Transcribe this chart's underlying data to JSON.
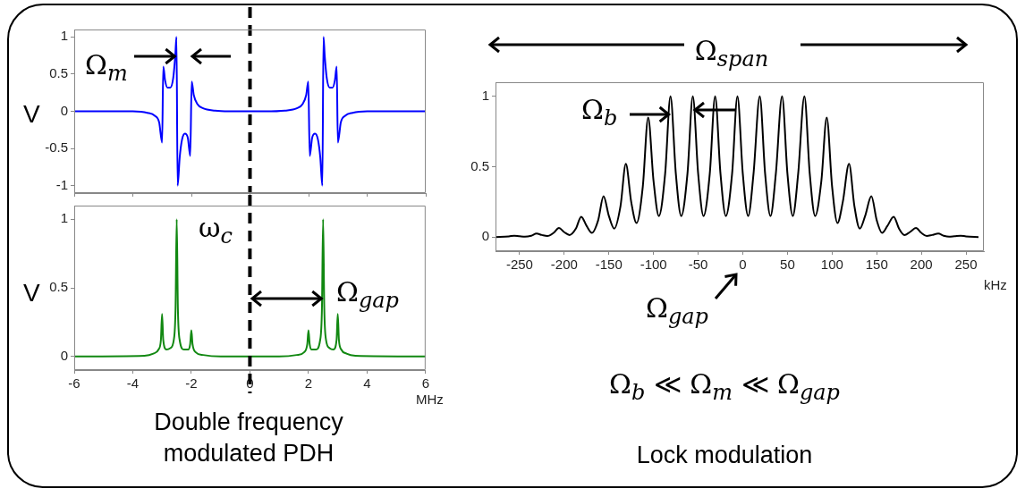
{
  "chart_data": [
    {
      "type": "line",
      "ylabel": "V",
      "annotations": [
        {
          "text": "Ω$_{m}$",
          "x": -2.51,
          "y": 0.74
        }
      ],
      "xlim": [
        -6,
        6
      ],
      "ylim": [
        -1.1,
        1.1
      ],
      "xticks": [
        -6,
        -4,
        -2,
        0,
        2,
        4,
        6
      ],
      "yticks": [
        -1,
        -0.5,
        0,
        0.5,
        1
      ],
      "tick_labels": "y",
      "ref_lines": [
        {
          "axis": "x",
          "value": 0,
          "line_style": "dashed",
          "color": "#000000"
        }
      ],
      "series": [
        {
          "color": "#0000ff",
          "x": [
            -6,
            -4.5,
            -4,
            -3.5,
            -3.25,
            -3.1,
            -3.0,
            -2.96,
            -2.9,
            -2.82,
            -2.72,
            -2.62,
            -2.55,
            -2.51,
            -2.47,
            -2.4,
            -2.32,
            -2.22,
            -2.12,
            -2.04,
            -1.99,
            -1.92,
            -1.8,
            -1.6,
            -1.2,
            -0.5,
            0,
            0.5,
            1.2,
            1.6,
            1.8,
            1.92,
            1.99,
            2.04,
            2.12,
            2.22,
            2.32,
            2.4,
            2.47,
            2.51,
            2.55,
            2.62,
            2.72,
            2.82,
            2.9,
            2.96,
            3.0,
            3.1,
            3.25,
            3.5,
            4,
            4.5,
            6
          ],
          "values": [
            0,
            0,
            0,
            -0.02,
            -0.06,
            -0.15,
            -0.42,
            0.6,
            0.42,
            0.32,
            0.32,
            0.45,
            0.75,
            1,
            -1,
            -0.62,
            -0.38,
            -0.3,
            -0.36,
            -0.6,
            0.4,
            0.22,
            0.1,
            0.04,
            0.01,
            0,
            0,
            0,
            0.01,
            0.04,
            0.1,
            0.22,
            0.4,
            -0.6,
            -0.36,
            -0.3,
            -0.38,
            -0.62,
            -1,
            1,
            0.75,
            0.45,
            0.32,
            0.32,
            0.42,
            0.6,
            -0.42,
            -0.15,
            -0.06,
            -0.02,
            0,
            0,
            0
          ]
        }
      ]
    },
    {
      "type": "line",
      "ylabel": "V",
      "xlabel": "MHz",
      "annotations": [
        "ω$_{c}$",
        {
          "text": "Ω$_{gap}$",
          "x": 2.5,
          "y": 0.42
        },
        "Double frequency modulated PDH"
      ],
      "xlim": [
        -6,
        6
      ],
      "ylim": [
        -0.1,
        1.1
      ],
      "xticks": [
        -6,
        -4,
        -2,
        0,
        2,
        4,
        6
      ],
      "yticks": [
        0,
        0.5,
        1
      ],
      "ref_lines": [
        {
          "axis": "x",
          "value": 0,
          "line_style": "dashed",
          "color": "#000000"
        }
      ],
      "series": [
        {
          "color": "#118811",
          "x": [
            -6,
            -3.6,
            -3.3,
            -3.12,
            -3.04,
            -3.0,
            -2.96,
            -2.85,
            -2.72,
            -2.6,
            -2.54,
            -2.5,
            -2.46,
            -2.4,
            -2.25,
            -2.1,
            -2.04,
            -2.0,
            -1.96,
            -1.85,
            -1.6,
            -1,
            0,
            1,
            1.6,
            1.85,
            1.96,
            2.0,
            2.04,
            2.1,
            2.25,
            2.4,
            2.46,
            2.5,
            2.54,
            2.6,
            2.72,
            2.85,
            2.96,
            3.0,
            3.04,
            3.12,
            3.3,
            3.6,
            6
          ],
          "values": [
            0,
            0.005,
            0.02,
            0.05,
            0.12,
            0.31,
            0.12,
            0.05,
            0.06,
            0.12,
            0.35,
            1,
            0.35,
            0.12,
            0.05,
            0.05,
            0.09,
            0.19,
            0.09,
            0.03,
            0.01,
            0,
            0,
            0,
            0.01,
            0.03,
            0.09,
            0.19,
            0.09,
            0.05,
            0.05,
            0.12,
            0.35,
            1,
            0.35,
            0.12,
            0.06,
            0.05,
            0.12,
            0.31,
            0.12,
            0.05,
            0.02,
            0.005,
            0
          ]
        }
      ]
    },
    {
      "type": "line",
      "xlabel": "kHz",
      "annotations": [
        "Ω$_{span}$",
        {
          "text": "Ω$_{b}$",
          "x": -81,
          "y": 0.87
        },
        "Ω$_{gap}$",
        "Ω$_{b}$ ≪ Ω$_{m}$ ≪ Ω$_{gap}$",
        "Lock modulation"
      ],
      "xlim": [
        -277,
        270
      ],
      "ylim": [
        -0.1,
        1.1
      ],
      "xticks": [
        -250,
        -200,
        -150,
        -100,
        -50,
        0,
        50,
        100,
        150,
        200,
        250
      ],
      "yticks": [
        0,
        0.5,
        1
      ],
      "series": [
        {
          "color": "#000000",
          "x": [
            -277,
            -262,
            -256,
            -250,
            -244,
            -237,
            -231,
            -225,
            -219,
            -212,
            -206,
            -200,
            -194,
            -187,
            -181,
            -175,
            -169,
            -162,
            -156,
            -150,
            -144,
            -137,
            -131,
            -125,
            -119,
            -112,
            -106,
            -100,
            -94,
            -87,
            -81,
            -75,
            -69,
            -62,
            -56,
            -50,
            -44,
            -37,
            -31,
            -25,
            -19,
            -12,
            -6,
            0,
            6,
            12,
            19,
            25,
            31,
            37,
            44,
            50,
            56,
            62,
            69,
            75,
            81,
            88,
            94,
            100,
            106,
            112,
            119,
            125,
            131,
            137,
            144,
            150,
            156,
            162,
            169,
            175,
            181,
            187,
            194,
            200,
            206,
            212,
            219,
            225,
            231,
            237,
            244,
            250,
            264
          ],
          "values": [
            0,
            0.005,
            0.01,
            0.006,
            0.003,
            0.01,
            0.025,
            0.015,
            0.008,
            0.03,
            0.065,
            0.035,
            0.015,
            0.06,
            0.145,
            0.08,
            0.03,
            0.12,
            0.29,
            0.15,
            0.06,
            0.22,
            0.52,
            0.25,
            0.1,
            0.36,
            0.85,
            0.4,
            0.15,
            0.45,
            1,
            0.45,
            0.15,
            0.45,
            1,
            0.45,
            0.15,
            0.45,
            1,
            0.45,
            0.15,
            0.45,
            1,
            0.45,
            0.15,
            0.45,
            1,
            0.45,
            0.15,
            0.45,
            1,
            0.45,
            0.15,
            0.45,
            1,
            0.45,
            0.15,
            0.4,
            0.85,
            0.36,
            0.1,
            0.25,
            0.52,
            0.22,
            0.06,
            0.15,
            0.29,
            0.12,
            0.03,
            0.08,
            0.145,
            0.06,
            0.015,
            0.035,
            0.065,
            0.03,
            0.008,
            0.015,
            0.025,
            0.01,
            0.003,
            0.006,
            0.01,
            0.005,
            0
          ]
        }
      ]
    }
  ]
}
